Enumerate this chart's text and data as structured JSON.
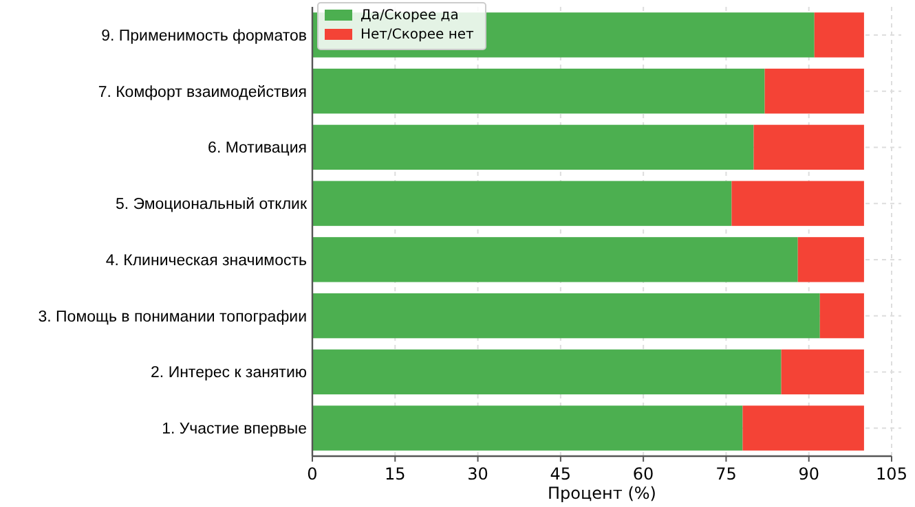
{
  "chart_data": {
    "type": "bar",
    "orientation": "horizontal",
    "stacked": true,
    "categories": [
      "9. Применимость форматов",
      "7. Комфорт взаимодействия",
      "6. Мотивация",
      "5. Эмоциональный отклик",
      "4. Клиническая значимость",
      "3. Помощь в понимании топографии",
      "2. Интерес к занятию",
      "1. Участие впервые"
    ],
    "series": [
      {
        "name": "Да/Скорее да",
        "color": "#4caf50",
        "values": [
          91,
          82,
          80,
          76,
          88,
          92,
          85,
          78
        ]
      },
      {
        "name": "Нет/Скорее нет",
        "color": "#f44336",
        "values": [
          9,
          18,
          20,
          24,
          12,
          8,
          15,
          22
        ]
      }
    ],
    "xlabel": "Процент (%)",
    "xlim": [
      0,
      105
    ],
    "xticks": [
      0,
      15,
      30,
      45,
      60,
      75,
      90,
      105
    ],
    "grid": true,
    "legend": "top left"
  }
}
